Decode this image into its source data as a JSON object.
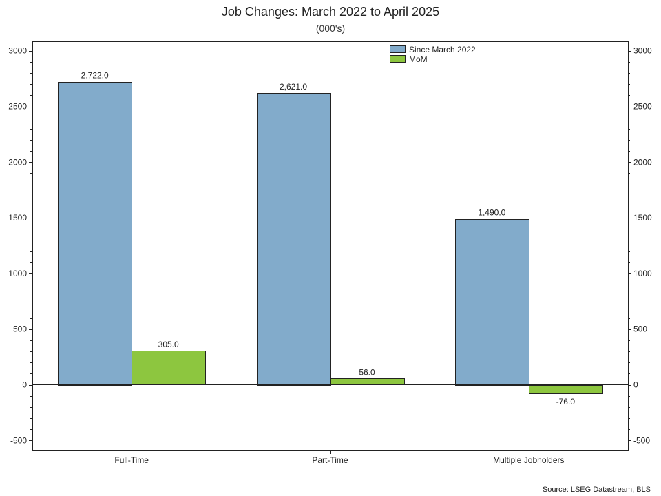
{
  "chart_data": {
    "type": "bar",
    "title": "Job Changes: March 2022 to April 2025",
    "subtitle": "(000's)",
    "categories": [
      "Full-Time",
      "Part-Time",
      "Multiple Jobholders"
    ],
    "series": [
      {
        "name": "Since March 2022",
        "values": [
          2722.0,
          2621.0,
          1490.0
        ],
        "labels": [
          "2,722.0",
          "2,621.0",
          "1,490.0"
        ],
        "color": "#82abcb"
      },
      {
        "name": "MoM",
        "values": [
          305.0,
          56.0,
          -76.0
        ],
        "labels": [
          "305.0",
          "56.0",
          "-76.0"
        ],
        "color": "#8dc63f"
      }
    ],
    "ylim": [
      -600,
      3100
    ],
    "yticks": [
      -500,
      0,
      500,
      1000,
      1500,
      2000,
      2500,
      3000
    ],
    "dual_y_axis": true,
    "legend_position": "top-right",
    "grid": false,
    "source": "Source: LSEG Datastream, BLS"
  }
}
